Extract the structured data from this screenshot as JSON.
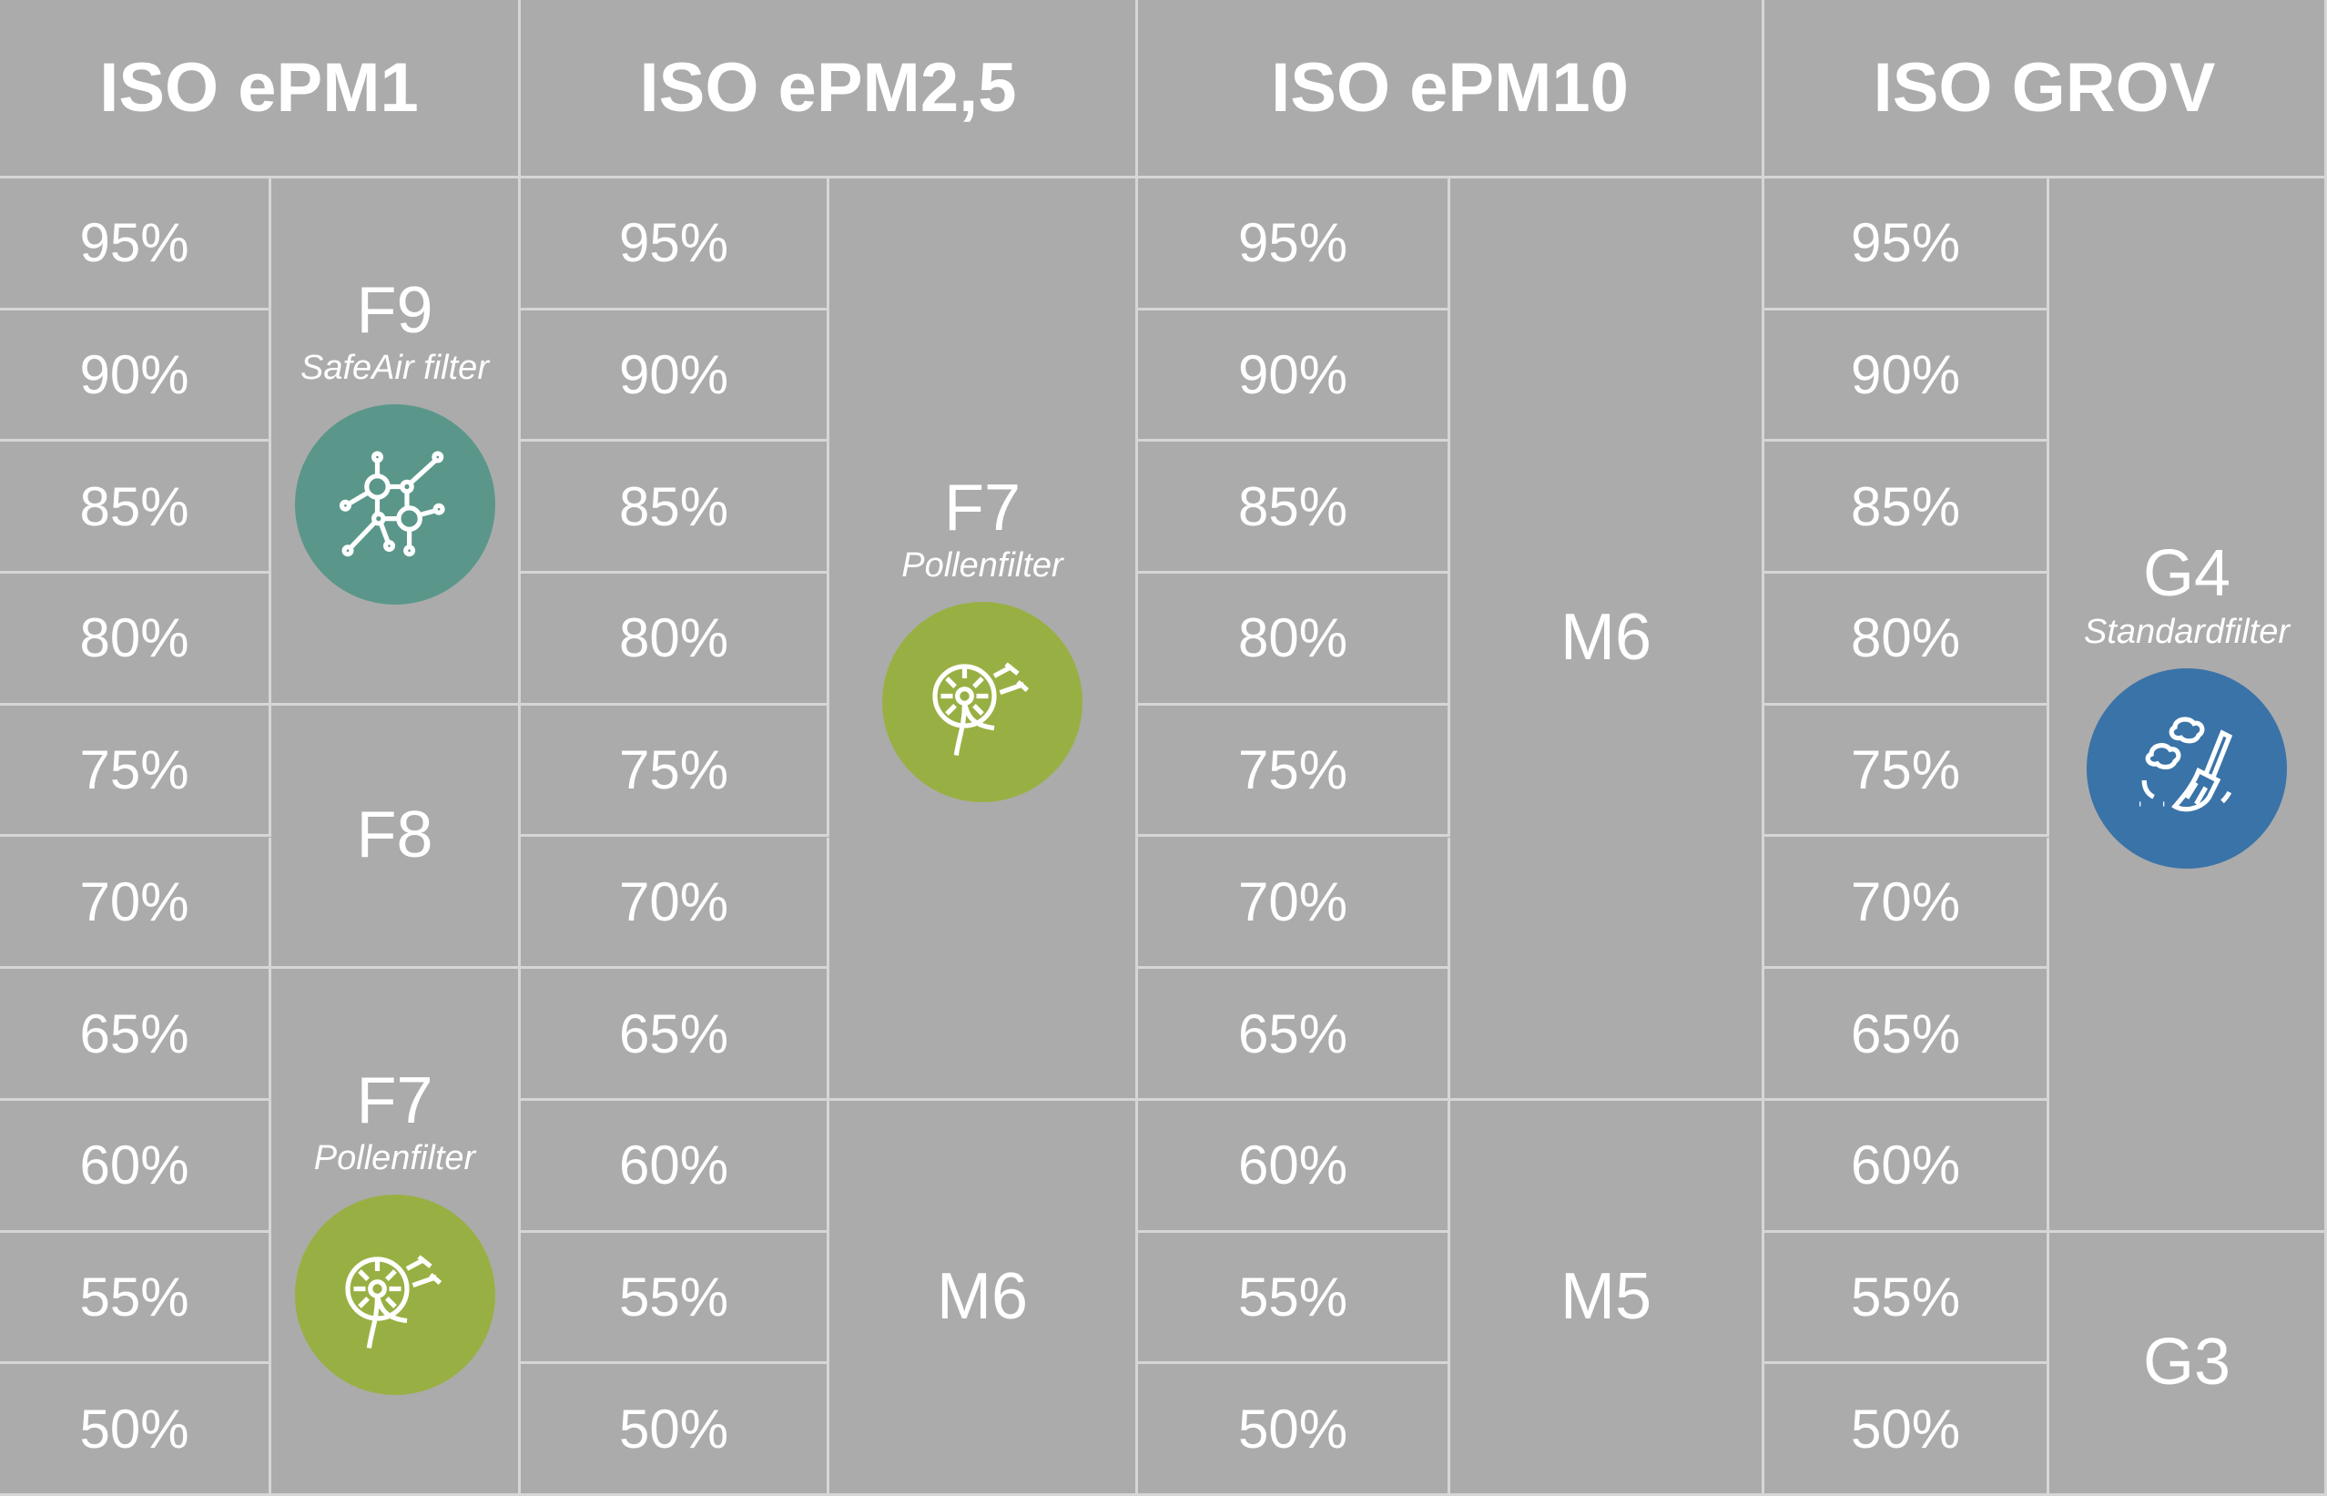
{
  "percent_rows": [
    "95%",
    "90%",
    "85%",
    "80%",
    "75%",
    "70%",
    "65%",
    "60%",
    "55%",
    "50%"
  ],
  "columns": [
    {
      "title": "ISO ePM1",
      "groups": [
        {
          "grade": "F9",
          "subtitle": "SafeAir filter",
          "icon": "molecule-icon",
          "icon_color": "#5a978a",
          "rows": [
            0,
            3
          ]
        },
        {
          "grade": "F8",
          "rows": [
            4,
            5
          ]
        },
        {
          "grade": "F7",
          "subtitle": "Pollenfilter",
          "icon": "dandelion-icon",
          "icon_color": "#98b043",
          "rows": [
            6,
            9
          ]
        }
      ]
    },
    {
      "title": "ISO ePM2,5",
      "groups": [
        {
          "grade": "F7",
          "subtitle": "Pollenfilter",
          "icon": "dandelion-icon",
          "icon_color": "#98b043",
          "rows": [
            0,
            6
          ]
        },
        {
          "grade": "M6",
          "rows": [
            7,
            9
          ]
        }
      ]
    },
    {
      "title": "ISO ePM10",
      "groups": [
        {
          "grade": "M6",
          "rows": [
            0,
            6
          ]
        },
        {
          "grade": "M5",
          "rows": [
            7,
            9
          ]
        }
      ]
    },
    {
      "title": "ISO GROV",
      "groups": [
        {
          "grade": "G4",
          "subtitle": "Standardfilter",
          "icon": "broom-icon",
          "icon_color": "#3a73a8",
          "rows": [
            0,
            7
          ]
        },
        {
          "grade": "G3",
          "rows": [
            8,
            9
          ]
        }
      ]
    }
  ]
}
